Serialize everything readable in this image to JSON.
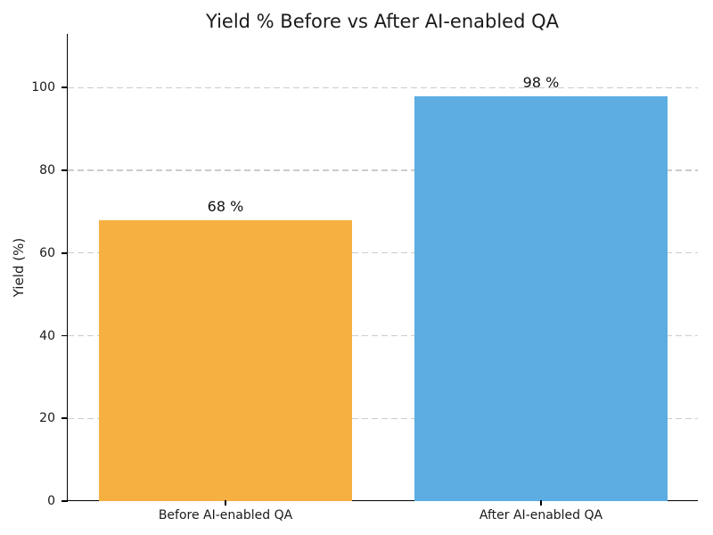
{
  "figure": {
    "background": "#ffffff",
    "text_color": "#1a1a1a"
  },
  "chart_data": {
    "type": "bar",
    "title": "Yield % Before vs After AI-enabled QA",
    "categories": [
      "Before AI-enabled QA",
      "After AI-enabled QA"
    ],
    "values": [
      68,
      98
    ],
    "bar_labels": [
      "68 %",
      "98 %"
    ],
    "colors": [
      "#F5B041",
      "#5DADE2"
    ],
    "xlabel": "",
    "ylabel": "Yield (%)",
    "ylim": [
      0,
      113
    ],
    "yticks": [
      0,
      20,
      40,
      60,
      80,
      100
    ],
    "bar_width_fraction": 0.8,
    "grid": "horizontal-dashed",
    "grid_color": "#cccccc",
    "legend": "none"
  }
}
